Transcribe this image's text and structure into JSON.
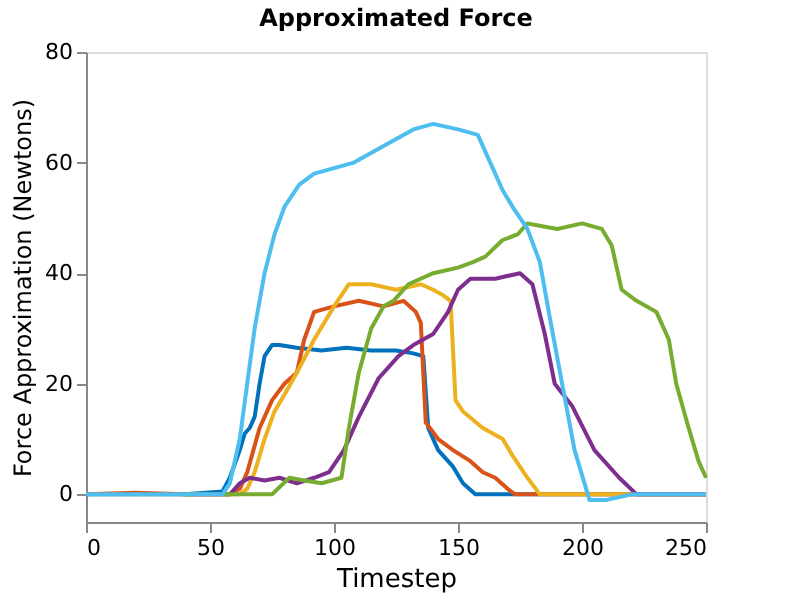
{
  "chart_data": {
    "type": "line",
    "title": "Approximated Force",
    "xlabel": "Timestep",
    "ylabel": "Force Approximation (Newtons)",
    "xlim": [
      0,
      250
    ],
    "ylim": [
      -5,
      80
    ],
    "xticks": [
      0,
      50,
      100,
      150,
      200,
      250
    ],
    "yticks": [
      0,
      20,
      40,
      60,
      80
    ],
    "grid": false,
    "legend": false,
    "line_style": "solid",
    "marker": "none",
    "series": [
      {
        "color": "#0072bd",
        "x": [
          0,
          20,
          40,
          55,
          58,
          62,
          64,
          66,
          68,
          70,
          72,
          75,
          78,
          85,
          95,
          105,
          115,
          125,
          132,
          136,
          138,
          142,
          148,
          152,
          157,
          165,
          200,
          250
        ],
        "values": [
          0,
          0,
          0,
          0.5,
          3,
          8,
          11,
          12,
          14,
          20,
          25,
          27,
          27,
          26.5,
          26,
          26.5,
          26,
          26,
          25.5,
          25,
          12,
          8,
          5,
          2,
          0,
          0,
          0,
          0
        ]
      },
      {
        "color": "#d95319",
        "x": [
          0,
          20,
          40,
          58,
          62,
          65,
          70,
          75,
          80,
          85,
          88,
          92,
          100,
          110,
          120,
          128,
          133,
          135,
          137,
          142,
          148,
          155,
          160,
          165,
          170,
          173,
          200,
          250
        ],
        "values": [
          0,
          0.3,
          0,
          0,
          1,
          4,
          12,
          17,
          20,
          22,
          28,
          33,
          34,
          35,
          34,
          35,
          33,
          31,
          13,
          10,
          8,
          6,
          4,
          3,
          1,
          0,
          0,
          0
        ]
      },
      {
        "color": "#edb120",
        "x": [
          40,
          62,
          65,
          68,
          72,
          76,
          80,
          85,
          92,
          100,
          106,
          115,
          125,
          135,
          140,
          144,
          147,
          149,
          152,
          160,
          168,
          172,
          178,
          183,
          200,
          250
        ],
        "values": [
          0,
          0,
          1,
          4,
          10,
          15,
          18,
          22,
          28,
          34,
          38,
          38,
          37,
          38,
          37,
          36,
          35,
          17,
          15,
          12,
          10,
          7,
          3,
          0,
          0,
          0
        ]
      },
      {
        "color": "#7e2f8e",
        "x": [
          40,
          58,
          62,
          66,
          72,
          78,
          85,
          92,
          98,
          104,
          110,
          118,
          126,
          132,
          140,
          146,
          150,
          155,
          165,
          175,
          180,
          185,
          189,
          196,
          205,
          215,
          222,
          250
        ],
        "values": [
          0,
          0,
          2,
          3,
          2.5,
          3,
          2,
          3,
          4,
          8,
          14,
          21,
          25,
          27,
          29,
          33,
          37,
          39,
          39,
          40,
          38,
          29,
          20,
          16,
          8,
          3,
          0,
          0
        ]
      },
      {
        "color": "#77ac30",
        "x": [
          40,
          60,
          68,
          75,
          82,
          88,
          95,
          103,
          106,
          110,
          115,
          120,
          124,
          130,
          140,
          150,
          156,
          161,
          168,
          174,
          178,
          190,
          200,
          208,
          212,
          216,
          222,
          230,
          235,
          238,
          243,
          247,
          250
        ],
        "values": [
          0,
          0,
          0,
          0,
          3,
          2.5,
          2,
          3,
          12,
          22,
          30,
          34,
          35,
          38,
          40,
          41,
          42,
          43,
          46,
          47,
          49,
          48,
          49,
          48,
          45,
          37,
          35,
          33,
          28,
          20,
          12,
          6,
          3
        ]
      },
      {
        "color": "#4dbeee",
        "x": [
          0,
          20,
          40,
          55,
          58,
          62,
          65,
          68,
          72,
          76,
          80,
          86,
          92,
          100,
          108,
          116,
          124,
          132,
          140,
          150,
          158,
          163,
          168,
          172,
          178,
          183,
          187,
          192,
          197,
          203,
          210,
          215,
          220,
          250
        ],
        "values": [
          0,
          0,
          0,
          0,
          2,
          10,
          20,
          30,
          40,
          47,
          52,
          56,
          58,
          59,
          60,
          62,
          64,
          66,
          67,
          66,
          65,
          60,
          55,
          52,
          48,
          42,
          32,
          20,
          8,
          -1,
          -1,
          -0.5,
          0,
          0
        ]
      }
    ]
  }
}
